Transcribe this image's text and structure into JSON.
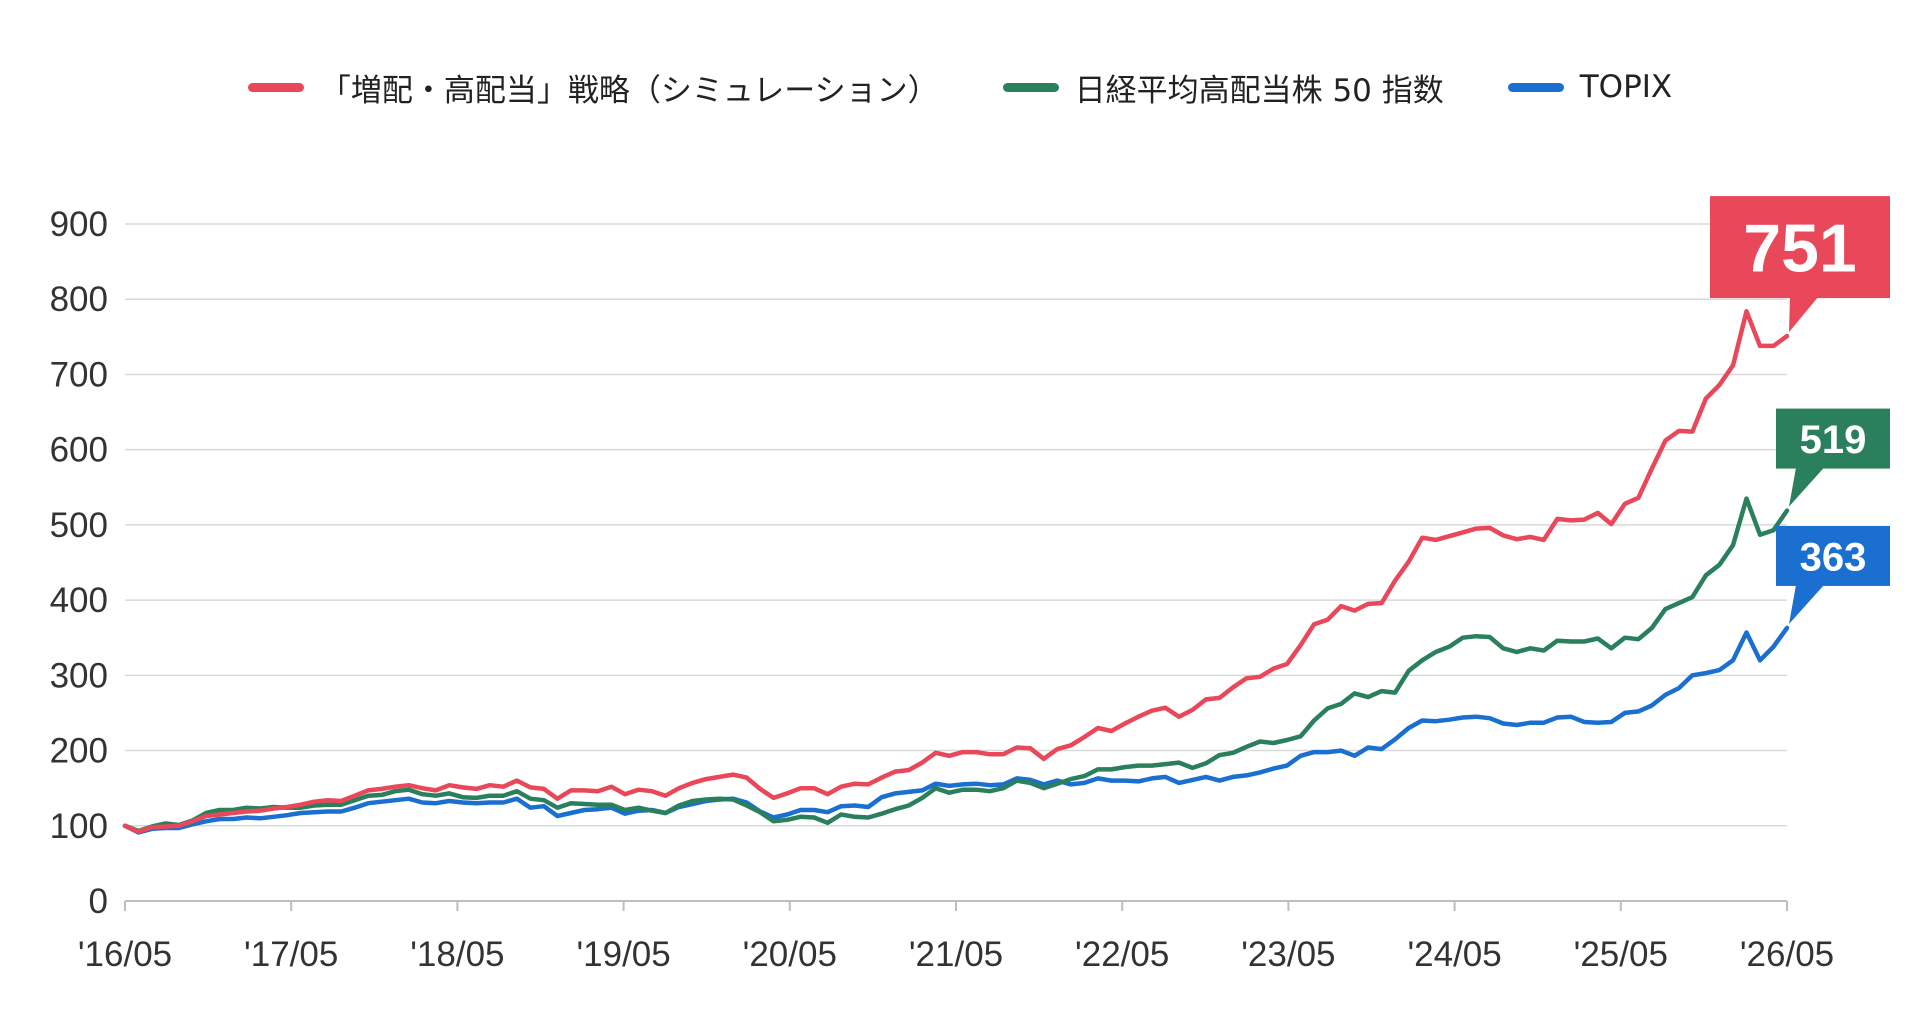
{
  "chart_data": {
    "type": "line",
    "ylim": [
      0,
      900
    ],
    "yticks": [
      "0",
      "100",
      "200",
      "300",
      "400",
      "500",
      "600",
      "700",
      "800",
      "900"
    ],
    "xticks": [
      "'16/05",
      "'17/05",
      "'18/05",
      "'19/05",
      "'20/05",
      "'21/05",
      "'22/05",
      "'23/05",
      "'24/05",
      "'25/05",
      "'26/05"
    ],
    "grid": true,
    "legend_position": "top-center",
    "series": [
      {
        "name": "「増配・高配当」戦略（シミュレーション）",
        "color": "#E8485A",
        "end_label": "751",
        "values": [
          100,
          92,
          98,
          99,
          100,
          106,
          113,
          115,
          117,
          119,
          120,
          123,
          125,
          128,
          132,
          134,
          133,
          140,
          147,
          149,
          152,
          154,
          150,
          147,
          154,
          151,
          149,
          154,
          152,
          160,
          151,
          149,
          136,
          147,
          147,
          146,
          152,
          142,
          148,
          146,
          140,
          150,
          157,
          162,
          165,
          168,
          164,
          149,
          137,
          143,
          150,
          150,
          142,
          152,
          156,
          155,
          164,
          172,
          174,
          184,
          197,
          193,
          198,
          198,
          195,
          195,
          204,
          203,
          189,
          202,
          207,
          218,
          230,
          226,
          236,
          245,
          253,
          257,
          245,
          254,
          268,
          270,
          284,
          296,
          298,
          309,
          315,
          340,
          368,
          374,
          392,
          386,
          395,
          396,
          426,
          451,
          483,
          480,
          485,
          490,
          495,
          496,
          486,
          481,
          484,
          480,
          508,
          506,
          507,
          516,
          501,
          528,
          536,
          575,
          612,
          625,
          624,
          668,
          686,
          712,
          784,
          738,
          738,
          751
        ]
      },
      {
        "name": "日経平均高配当株 50 指数",
        "color": "#2A7F5C",
        "end_label": "519",
        "values": [
          100,
          93,
          99,
          103,
          101,
          107,
          117,
          121,
          121,
          124,
          123,
          125,
          124,
          124,
          127,
          128,
          128,
          134,
          140,
          141,
          146,
          148,
          142,
          140,
          143,
          138,
          137,
          140,
          140,
          146,
          136,
          134,
          124,
          130,
          129,
          128,
          128,
          121,
          124,
          120,
          117,
          127,
          133,
          135,
          136,
          135,
          127,
          118,
          106,
          108,
          112,
          111,
          104,
          115,
          112,
          111,
          116,
          122,
          127,
          137,
          150,
          144,
          148,
          148,
          146,
          150,
          160,
          157,
          150,
          156,
          162,
          166,
          175,
          175,
          178,
          180,
          180,
          182,
          184,
          177,
          183,
          194,
          197,
          205,
          212,
          210,
          214,
          219,
          240,
          256,
          262,
          276,
          271,
          279,
          277,
          306,
          320,
          331,
          338,
          350,
          352,
          351,
          336,
          331,
          336,
          333,
          346,
          345,
          345,
          349,
          336,
          350,
          348,
          363,
          388,
          396,
          404,
          433,
          447,
          473,
          535,
          487,
          493,
          519
        ]
      },
      {
        "name": "TOPIX",
        "color": "#1A6FD0",
        "end_label": "363",
        "values": [
          100,
          91,
          96,
          97,
          97,
          102,
          106,
          109,
          109,
          111,
          110,
          112,
          114,
          117,
          118,
          119,
          119,
          124,
          130,
          132,
          134,
          136,
          131,
          130,
          133,
          131,
          130,
          131,
          131,
          136,
          124,
          126,
          113,
          117,
          121,
          122,
          124,
          116,
          120,
          121,
          117,
          125,
          129,
          133,
          135,
          136,
          131,
          119,
          111,
          115,
          121,
          121,
          118,
          126,
          127,
          125,
          138,
          143,
          145,
          147,
          156,
          153,
          155,
          156,
          154,
          155,
          163,
          161,
          155,
          160,
          155,
          157,
          163,
          160,
          160,
          159,
          163,
          165,
          157,
          161,
          165,
          160,
          165,
          167,
          171,
          176,
          180,
          193,
          198,
          198,
          200,
          193,
          204,
          202,
          215,
          230,
          240,
          239,
          241,
          244,
          245,
          243,
          236,
          234,
          237,
          237,
          244,
          245,
          238,
          237,
          238,
          250,
          252,
          260,
          274,
          283,
          300,
          303,
          307,
          320,
          357,
          320,
          338,
          363
        ]
      }
    ]
  }
}
